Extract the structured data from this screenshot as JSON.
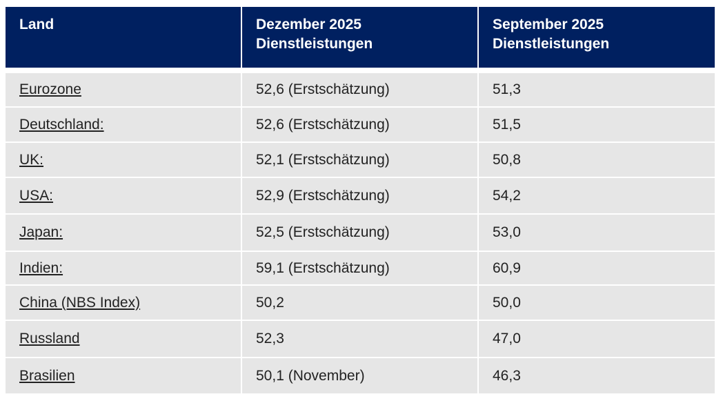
{
  "table": {
    "header": [
      [
        "Land"
      ],
      [
        "Dezember 2025",
        "Dienstleistungen"
      ],
      [
        "September 2025",
        "Dienstleistungen"
      ]
    ],
    "rows": [
      [
        "Eurozone",
        "52,6 (Erstschätzung)",
        "51,3"
      ],
      [
        "Deutschland:",
        "52,6 (Erstschätzung)",
        "51,5"
      ],
      [
        "UK:",
        "52,1 (Erstschätzung)",
        "50,8"
      ],
      [
        "USA:",
        "52,9 (Erstschätzung)",
        "54,2"
      ],
      [
        "Japan:",
        "52,5 (Erstschätzung)",
        "53,0"
      ],
      [
        "Indien:",
        "59,1 (Erstschätzung)",
        "60,9"
      ],
      [
        "China (NBS Index)",
        "50,2",
        "50,0"
      ],
      [
        "Russland",
        "52,3",
        "47,0"
      ],
      [
        "Brasilien",
        "50,1 (November)",
        "46,3"
      ]
    ]
  }
}
